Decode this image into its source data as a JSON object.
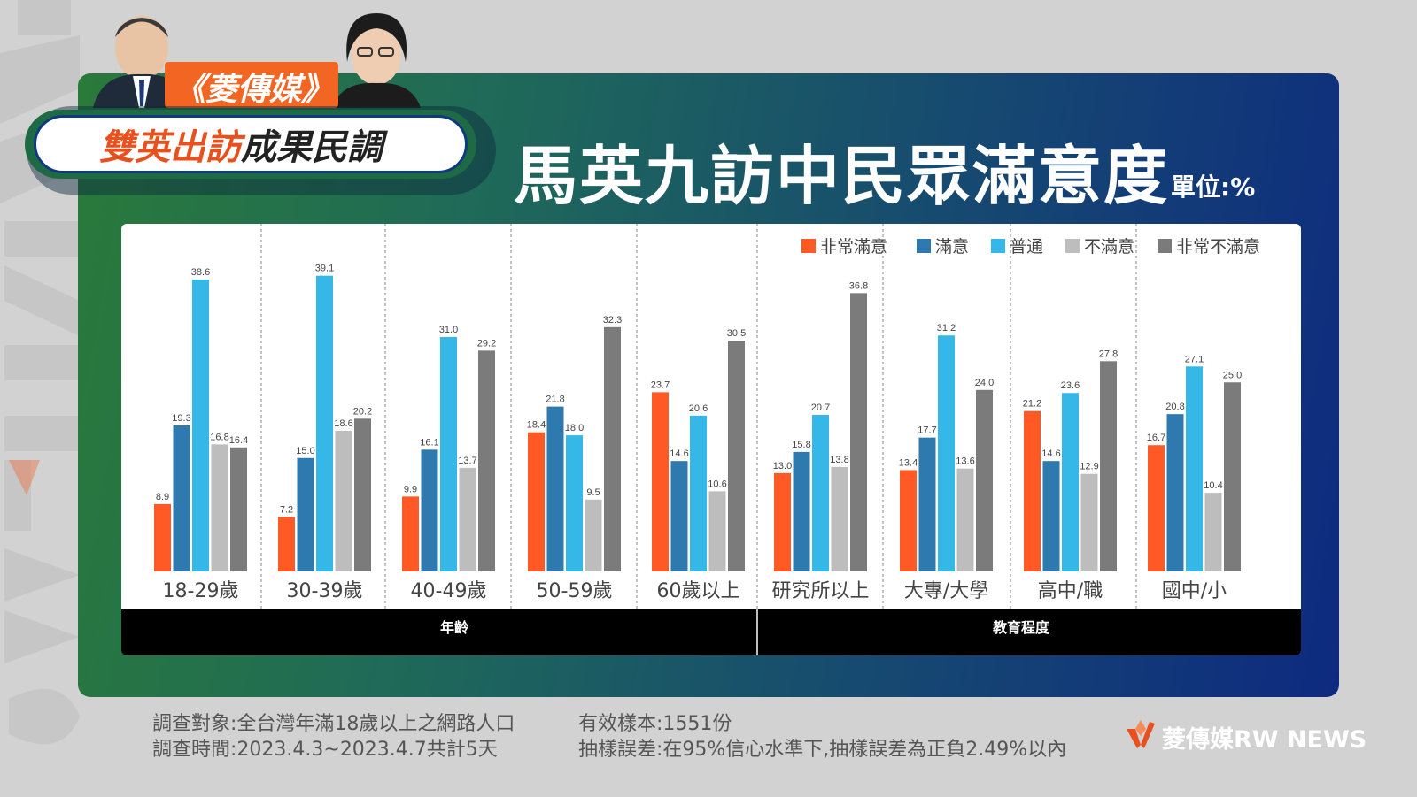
{
  "brand_tag": "《菱傳媒》",
  "subtitle_orange": "雙英出訪",
  "subtitle_dark": "成果民調",
  "title": "馬英九訪中民眾滿意度",
  "unit": "單位:%",
  "footer": {
    "line1_left": "調查對象:全台灣年滿18歲以上之網路人口",
    "line2_left": "調查時間:2023.4.3~2023.4.7共計5天",
    "line1_right": "有效樣本:1551份",
    "line2_right": "抽樣誤差:在95%信心水準下,抽樣誤差為正負2.49%以內"
  },
  "logo": {
    "cn": "菱傳媒",
    "en": "RW NEWS"
  },
  "watermark": "RW NEWS",
  "colors": {
    "series": [
      "#ff5a26",
      "#2e79ad",
      "#35b8e8",
      "#bdbdbd",
      "#7b7b7b"
    ]
  },
  "chart_data": {
    "type": "bar",
    "legend_position": "top-right",
    "ylim": [
      0,
      42
    ],
    "series_names": [
      "非常滿意",
      "滿意",
      "普通",
      "不滿意",
      "非常不滿意"
    ],
    "groups": [
      {
        "label": "年齡",
        "categories": [
          "18-29歲",
          "30-39歲",
          "40-49歲",
          "50-59歲",
          "60歲以上"
        ]
      },
      {
        "label": "教育程度",
        "categories": [
          "研究所以上",
          "大專/大學",
          "高中/職",
          "國中/小"
        ]
      }
    ],
    "categories": [
      "18-29歲",
      "30-39歲",
      "40-49歲",
      "50-59歲",
      "60歲以上",
      "研究所以上",
      "大專/大學",
      "高中/職",
      "國中/小"
    ],
    "series": [
      {
        "name": "非常滿意",
        "values": [
          8.9,
          7.2,
          9.9,
          18.4,
          23.7,
          13.0,
          13.4,
          21.2,
          16.7
        ]
      },
      {
        "name": "滿意",
        "values": [
          19.3,
          15.0,
          16.1,
          21.8,
          14.6,
          15.8,
          17.7,
          14.6,
          20.8
        ]
      },
      {
        "name": "普通",
        "values": [
          38.6,
          39.1,
          31.0,
          18.0,
          20.6,
          20.7,
          31.2,
          23.6,
          27.1
        ]
      },
      {
        "name": "不滿意",
        "values": [
          16.8,
          18.6,
          13.7,
          9.5,
          10.6,
          13.8,
          13.6,
          12.9,
          10.4
        ]
      },
      {
        "name": "非常不滿意",
        "values": [
          16.4,
          20.2,
          29.2,
          32.3,
          30.5,
          36.8,
          24.0,
          27.8,
          25.0
        ]
      }
    ],
    "value_labels": [
      [
        "8.9",
        "7.2",
        "9.9",
        "18.4",
        "23.7",
        "13.0",
        "13.4",
        "21.2",
        "16.7"
      ],
      [
        "19.3",
        "15.0",
        "16.1",
        "21.8",
        "14.6",
        "15.8",
        "17.7",
        "14.6",
        "20.8"
      ],
      [
        "38.6",
        "39.1",
        "31.0",
        "18.0",
        "20.6",
        "20.7",
        "31.2",
        "23.6",
        "27.1"
      ],
      [
        "16.8",
        "18.6",
        "13.7",
        "9.5",
        "10.6",
        "13.8",
        "13.6",
        "12.9",
        "10.4"
      ],
      [
        "16.4",
        "20.2",
        "29.2",
        "32.3",
        "30.5",
        "36.8",
        "24.0",
        "27.8",
        "25.0"
      ]
    ]
  }
}
